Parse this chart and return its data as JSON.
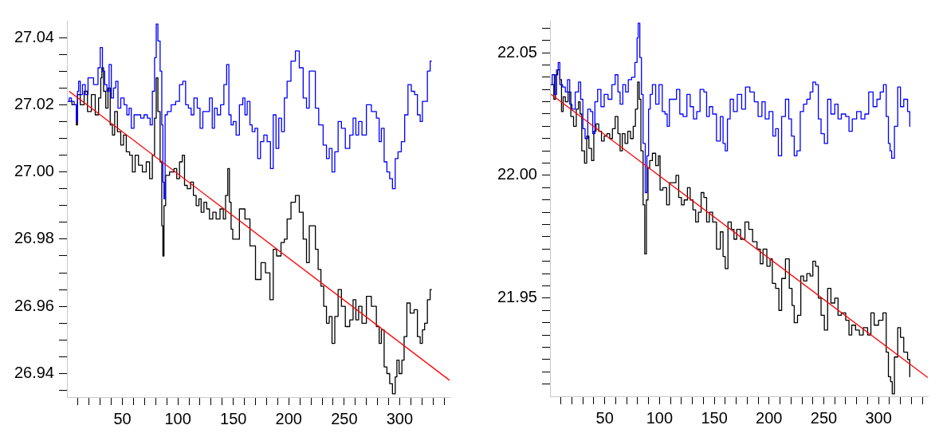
{
  "chart_data": [
    {
      "type": "step",
      "marker": "none",
      "xlim": [
        0,
        345
      ],
      "xticks": [
        {
          "value": 10,
          "label": null
        },
        {
          "value": 20,
          "label": null
        },
        {
          "value": 30,
          "label": null
        },
        {
          "value": 40,
          "label": null
        },
        50,
        {
          "value": 60,
          "label": null
        },
        {
          "value": 70,
          "label": null
        },
        {
          "value": 80,
          "label": null
        },
        {
          "value": 90,
          "label": null
        },
        100,
        {
          "value": 110,
          "label": null
        },
        {
          "value": 120,
          "label": null
        },
        {
          "value": 130,
          "label": null
        },
        {
          "value": 140,
          "label": null
        },
        150,
        {
          "value": 160,
          "label": null
        },
        {
          "value": 170,
          "label": null
        },
        {
          "value": 180,
          "label": null
        },
        {
          "value": 190,
          "label": null
        },
        200,
        {
          "value": 210,
          "label": null
        },
        {
          "value": 220,
          "label": null
        },
        {
          "value": 230,
          "label": null
        },
        {
          "value": 240,
          "label": null
        },
        250,
        {
          "value": 260,
          "label": null
        },
        {
          "value": 270,
          "label": null
        },
        {
          "value": 280,
          "label": null
        },
        {
          "value": 290,
          "label": null
        },
        300,
        {
          "value": 310,
          "label": null
        },
        {
          "value": 320,
          "label": null
        },
        {
          "value": 330,
          "label": null
        },
        {
          "value": 340,
          "label": null
        }
      ],
      "ylim": [
        26.933,
        27.045
      ],
      "yticks": [
        {
          "value": 26.935,
          "label": null
        },
        26.94,
        {
          "value": 26.945,
          "label": null
        },
        {
          "value": 26.95,
          "label": null
        },
        {
          "value": 26.955,
          "label": null
        },
        26.96,
        {
          "value": 26.965,
          "label": null
        },
        {
          "value": 26.97,
          "label": null
        },
        {
          "value": 26.975,
          "label": null
        },
        26.98,
        {
          "value": 26.985,
          "label": null
        },
        {
          "value": 26.99,
          "label": null
        },
        {
          "value": 26.995,
          "label": null
        },
        {
          "value": 27,
          "label": "27.00"
        },
        {
          "value": 27.005,
          "label": null
        },
        {
          "value": 27.01,
          "label": null
        },
        {
          "value": 27.015,
          "label": null
        },
        27.02,
        {
          "value": 27.025,
          "label": null
        },
        {
          "value": 27.03,
          "label": null
        },
        {
          "value": 27.035,
          "label": null
        },
        27.04
      ],
      "series": [
        {
          "color": "#000000",
          "x": [
            1,
            8,
            9,
            10,
            14,
            17,
            20,
            24,
            27,
            30,
            31,
            32,
            34,
            36,
            38,
            40,
            42,
            44,
            47,
            50,
            52,
            55,
            58,
            60,
            63,
            66,
            70,
            73,
            76,
            78,
            80,
            81,
            83,
            85,
            86,
            87,
            88,
            90,
            95,
            98,
            100,
            103,
            105,
            107,
            110,
            113,
            115,
            118,
            120,
            122,
            125,
            127,
            130,
            133,
            136,
            140,
            142,
            144,
            146,
            147,
            149,
            150,
            153,
            158,
            163,
            167,
            173,
            177,
            181,
            185,
            187,
            191,
            195,
            197,
            200,
            204,
            208,
            211,
            215,
            217,
            220,
            223,
            225,
            228,
            230,
            233,
            235,
            238,
            240,
            243,
            246,
            249,
            253,
            257,
            259,
            262,
            264,
            268,
            272,
            277,
            281,
            282,
            285,
            287,
            290,
            292,
            295,
            297,
            298,
            301,
            303,
            305,
            308,
            311,
            315,
            317,
            320,
            321,
            324,
            326,
            329
          ],
          "values": [
            27.021,
            27.02,
            27.014,
            27.023,
            27.02,
            27.024,
            27.018,
            27.023,
            27.017,
            27.022,
            27.028,
            27.031,
            27.024,
            27.019,
            27.025,
            27.014,
            27.011,
            27.018,
            27.012,
            27.008,
            27.011,
            27.006,
            27.005,
            27.0,
            27.005,
            27.002,
            27.0,
            27.003,
            26.998,
            27.005,
            27.016,
            27.028,
            27.018,
            27.003,
            26.984,
            26.975,
            26.99,
            26.999,
            27.0,
            27.001,
            26.998,
            27.003,
            27.005,
            26.996,
            26.995,
            26.997,
            26.993,
            26.99,
            26.992,
            26.988,
            26.991,
            26.989,
            26.986,
            26.988,
            26.986,
            26.989,
            26.986,
            26.993,
            27.001,
            26.991,
            26.983,
            26.98,
            26.98,
            26.989,
            26.986,
            26.978,
            26.968,
            26.973,
            26.97,
            26.962,
            26.977,
            26.975,
            26.979,
            26.98,
            26.986,
            26.991,
            26.993,
            26.988,
            26.98,
            26.973,
            26.984,
            26.984,
            26.977,
            26.971,
            26.966,
            26.96,
            26.955,
            26.957,
            26.949,
            26.957,
            26.965,
            26.96,
            26.954,
            26.956,
            26.962,
            26.956,
            26.96,
            26.955,
            26.963,
            26.96,
            26.954,
            26.949,
            26.953,
            26.942,
            26.94,
            26.937,
            26.934,
            26.939,
            26.944,
            26.94,
            26.944,
            26.951,
            26.961,
            26.958,
            26.959,
            26.951,
            26.949,
            26.953,
            26.955,
            26.962,
            26.965
          ]
        },
        {
          "color": "#0000ff",
          "x": [
            1,
            3,
            5,
            8,
            9,
            10,
            11,
            13,
            15,
            18,
            20,
            23,
            25,
            27,
            29,
            31,
            33,
            35,
            37,
            39,
            41,
            43,
            45,
            47,
            50,
            53,
            55,
            57,
            59,
            62,
            65,
            68,
            71,
            74,
            76,
            78,
            80,
            81,
            83,
            85,
            86,
            87,
            88,
            89,
            92,
            96,
            100,
            103,
            106,
            108,
            111,
            113,
            116,
            119,
            121,
            124,
            127,
            130,
            132,
            134,
            137,
            140,
            143,
            145,
            147,
            149,
            151,
            154,
            157,
            160,
            161,
            164,
            166,
            168,
            171,
            173,
            176,
            179,
            182,
            185,
            187,
            190,
            192,
            195,
            197,
            200,
            204,
            208,
            211,
            215,
            217,
            220,
            223,
            225,
            229,
            233,
            235,
            238,
            240,
            243,
            246,
            249,
            253,
            257,
            259,
            262,
            264,
            268,
            272,
            277,
            281,
            282,
            285,
            287,
            290,
            292,
            295,
            297,
            300,
            303,
            306,
            309,
            312,
            315,
            317,
            320,
            321,
            324,
            326,
            329
          ],
          "values": [
            27.021,
            27.022,
            27.021,
            27.02,
            27.015,
            27.024,
            27.027,
            27.023,
            27.026,
            27.023,
            27.028,
            27.028,
            27.026,
            27.026,
            27.031,
            27.037,
            27.03,
            27.026,
            27.024,
            27.032,
            27.022,
            27.025,
            27.027,
            27.019,
            27.022,
            27.02,
            27.017,
            27.019,
            27.013,
            27.017,
            27.017,
            27.016,
            27.017,
            27.016,
            27.014,
            27.024,
            27.034,
            27.044,
            27.039,
            27.03,
            27.014,
            26.997,
            26.992,
            27.017,
            27.018,
            27.02,
            27.021,
            27.026,
            27.027,
            27.02,
            27.019,
            27.017,
            27.022,
            27.019,
            27.013,
            27.018,
            27.018,
            27.022,
            27.013,
            27.019,
            27.017,
            27.02,
            27.026,
            27.032,
            27.017,
            27.014,
            27.015,
            27.011,
            27.02,
            27.022,
            27.017,
            27.021,
            27.014,
            27.012,
            27.013,
            27.004,
            27.009,
            27.011,
            27.009,
            27.001,
            27.017,
            27.007,
            27.016,
            27.012,
            27.022,
            27.027,
            27.033,
            27.036,
            27.031,
            27.022,
            27.019,
            27.03,
            27.03,
            27.019,
            27.014,
            27.008,
            27.004,
            27.007,
            27.0,
            27.006,
            27.015,
            27.013,
            27.007,
            27.011,
            27.016,
            27.011,
            27.015,
            27.011,
            27.02,
            27.018,
            27.016,
            27.009,
            27.013,
            27.003,
            27.0,
            26.998,
            26.995,
            27.004,
            27.006,
            27.009,
            27.017,
            27.026,
            27.024,
            27.023,
            27.017,
            27.015,
            27.021,
            27.021,
            27.03,
            27.033
          ]
        },
        {
          "type": "line",
          "color": "#ff0000",
          "x": [
            2,
            345
          ],
          "values": [
            27.024,
            26.938
          ]
        }
      ]
    },
    {
      "type": "step",
      "marker": "none",
      "xlim": [
        0,
        345
      ],
      "xticks": [
        {
          "value": 10,
          "label": null
        },
        {
          "value": 20,
          "label": null
        },
        {
          "value": 30,
          "label": null
        },
        {
          "value": 40,
          "label": null
        },
        50,
        {
          "value": 60,
          "label": null
        },
        {
          "value": 70,
          "label": null
        },
        {
          "value": 80,
          "label": null
        },
        {
          "value": 90,
          "label": null
        },
        100,
        {
          "value": 110,
          "label": null
        },
        {
          "value": 120,
          "label": null
        },
        {
          "value": 130,
          "label": null
        },
        {
          "value": 140,
          "label": null
        },
        150,
        {
          "value": 160,
          "label": null
        },
        {
          "value": 170,
          "label": null
        },
        {
          "value": 180,
          "label": null
        },
        {
          "value": 190,
          "label": null
        },
        200,
        {
          "value": 210,
          "label": null
        },
        {
          "value": 220,
          "label": null
        },
        {
          "value": 230,
          "label": null
        },
        {
          "value": 240,
          "label": null
        },
        250,
        {
          "value": 260,
          "label": null
        },
        {
          "value": 270,
          "label": null
        },
        {
          "value": 280,
          "label": null
        },
        {
          "value": 290,
          "label": null
        },
        300,
        {
          "value": 310,
          "label": null
        },
        {
          "value": 320,
          "label": null
        },
        {
          "value": 330,
          "label": null
        },
        {
          "value": 340,
          "label": null
        }
      ],
      "ylim": [
        21.91,
        22.063
      ],
      "yticks": [
        {
          "value": 21.915,
          "label": null
        },
        {
          "value": 21.92,
          "label": null
        },
        {
          "value": 21.925,
          "label": null
        },
        {
          "value": 21.93,
          "label": null
        },
        {
          "value": 21.935,
          "label": null
        },
        {
          "value": 21.94,
          "label": null
        },
        {
          "value": 21.945,
          "label": null
        },
        21.95,
        {
          "value": 21.955,
          "label": null
        },
        {
          "value": 21.96,
          "label": null
        },
        {
          "value": 21.965,
          "label": null
        },
        {
          "value": 21.97,
          "label": null
        },
        {
          "value": 21.975,
          "label": null
        },
        {
          "value": 21.98,
          "label": null
        },
        {
          "value": 21.985,
          "label": null
        },
        {
          "value": 21.99,
          "label": null
        },
        {
          "value": 21.995,
          "label": null
        },
        {
          "value": 22,
          "label": "22.00"
        },
        {
          "value": 22.005,
          "label": null
        },
        {
          "value": 22.01,
          "label": null
        },
        {
          "value": 22.015,
          "label": null
        },
        {
          "value": 22.02,
          "label": null
        },
        {
          "value": 22.025,
          "label": null
        },
        {
          "value": 22.03,
          "label": null
        },
        {
          "value": 22.035,
          "label": null
        },
        {
          "value": 22.04,
          "label": null
        },
        {
          "value": 22.045,
          "label": null
        },
        22.05,
        {
          "value": 22.055,
          "label": null
        },
        {
          "value": 22.06,
          "label": null
        }
      ],
      "series": [
        {
          "color": "#000000",
          "x": [
            1,
            3,
            4,
            6,
            8,
            10,
            11,
            13,
            15,
            18,
            20,
            23,
            25,
            27,
            28,
            30,
            33,
            34,
            37,
            39,
            41,
            43,
            46,
            48,
            51,
            53,
            56,
            58,
            61,
            63,
            65,
            67,
            70,
            72,
            75,
            77,
            79,
            81,
            82,
            84,
            86,
            87,
            89,
            90,
            92,
            95,
            98,
            100,
            101,
            105,
            108,
            110,
            114,
            116,
            119,
            121,
            124,
            127,
            129,
            132,
            134,
            137,
            139,
            142,
            144,
            147,
            150,
            154,
            157,
            159,
            161,
            164,
            167,
            169,
            172,
            176,
            180,
            183,
            187,
            191,
            193,
            196,
            200,
            202,
            204,
            208,
            210,
            213,
            217,
            220,
            222,
            224,
            228,
            230,
            233,
            236,
            239,
            241,
            244,
            246,
            249,
            252,
            255,
            258,
            262,
            264,
            268,
            272,
            274,
            277,
            281,
            284,
            288,
            292,
            294,
            298,
            302,
            306,
            308,
            310,
            312,
            313,
            316,
            319,
            321,
            325,
            328,
            329
          ],
          "values": [
            22.037,
            22.037,
            22.031,
            22.041,
            22.043,
            22.039,
            22.026,
            22.032,
            22.03,
            22.034,
            22.024,
            22.02,
            22.027,
            22.03,
            22.025,
            22.01,
            22.005,
            22.016,
            22.011,
            22.006,
            22.018,
            22.021,
            22.018,
            22.014,
            22.016,
            22.017,
            22.015,
            22.019,
            22.024,
            22.017,
            22.01,
            22.017,
            22.013,
            22.018,
            22.015,
            22.02,
            22.027,
            22.038,
            22.031,
            22.01,
            21.988,
            21.968,
            21.99,
            22.003,
            22.006,
            22.009,
            22.004,
            22.008,
            21.994,
            21.995,
            21.988,
            21.997,
            21.997,
            22.0,
            21.991,
            21.988,
            21.99,
            21.995,
            21.99,
            21.986,
            21.981,
            21.985,
            21.993,
            21.991,
            21.981,
            21.985,
            21.981,
            21.97,
            21.977,
            21.967,
            21.962,
            21.981,
            21.978,
            21.974,
            21.978,
            21.974,
            21.981,
            21.978,
            21.973,
            21.97,
            21.964,
            21.97,
            21.963,
            21.966,
            21.956,
            21.954,
            21.945,
            21.958,
            21.966,
            21.954,
            21.947,
            21.94,
            21.943,
            21.959,
            21.957,
            21.96,
            21.959,
            21.965,
            21.963,
            21.95,
            21.943,
            21.937,
            21.954,
            21.948,
            21.95,
            21.943,
            21.944,
            21.941,
            21.935,
            21.939,
            21.937,
            21.935,
            21.938,
            21.935,
            21.944,
            21.939,
            21.941,
            21.944,
            21.928,
            21.918,
            21.916,
            21.911,
            21.926,
            21.938,
            21.934,
            21.928,
            21.925,
            21.918
          ]
        },
        {
          "color": "#0000ff",
          "x": [
            1,
            3,
            5,
            7,
            8,
            10,
            13,
            15,
            17,
            19,
            21,
            25,
            27,
            29,
            31,
            33,
            36,
            38,
            40,
            42,
            45,
            48,
            51,
            55,
            58,
            61,
            63,
            65,
            68,
            70,
            73,
            76,
            79,
            80,
            81,
            83,
            84,
            86,
            88,
            89,
            91,
            92,
            95,
            98,
            101,
            104,
            106,
            108,
            110,
            114,
            117,
            120,
            123,
            127,
            129,
            133,
            135,
            139,
            142,
            144,
            147,
            150,
            154,
            157,
            159,
            161,
            163,
            166,
            169,
            173,
            177,
            180,
            185,
            188,
            192,
            195,
            198,
            202,
            205,
            207,
            210,
            213,
            217,
            219,
            222,
            224,
            227,
            230,
            233,
            236,
            239,
            241,
            244,
            246,
            249,
            252,
            255,
            258,
            262,
            264,
            268,
            272,
            274,
            278,
            282,
            286,
            289,
            293,
            297,
            300,
            303,
            306,
            308,
            310,
            311,
            313,
            316,
            319,
            321,
            325,
            328,
            329
          ],
          "values": [
            22.037,
            22.041,
            22.033,
            22.043,
            22.046,
            22.037,
            22.036,
            22.034,
            22.039,
            22.029,
            22.027,
            22.034,
            22.038,
            22.031,
            22.019,
            22.015,
            22.027,
            22.026,
            22.017,
            22.03,
            22.035,
            22.028,
            22.033,
            22.031,
            22.037,
            22.041,
            22.034,
            22.029,
            22.037,
            22.034,
            22.039,
            22.04,
            22.046,
            22.056,
            22.062,
            22.048,
            22.033,
            22.013,
            21.993,
            22.008,
            22.027,
            22.033,
            22.037,
            22.029,
            22.037,
            22.026,
            22.025,
            22.02,
            22.031,
            22.031,
            22.035,
            22.025,
            22.024,
            22.033,
            22.028,
            22.023,
            22.026,
            22.035,
            22.034,
            22.024,
            22.028,
            22.025,
            22.014,
            22.024,
            22.013,
            22.01,
            22.023,
            22.031,
            22.026,
            22.033,
            22.027,
            22.036,
            22.034,
            22.03,
            22.024,
            22.03,
            22.023,
            22.026,
            22.016,
            22.019,
            22.008,
            22.024,
            22.031,
            22.023,
            22.016,
            22.008,
            22.01,
            22.026,
            22.029,
            22.031,
            22.034,
            22.038,
            22.037,
            22.023,
            22.017,
            22.013,
            22.031,
            22.025,
            22.029,
            22.023,
            22.025,
            22.024,
            22.018,
            22.023,
            22.026,
            22.023,
            22.025,
            22.034,
            22.028,
            22.031,
            22.034,
            22.037,
            22.024,
            22.013,
            22.01,
            22.007,
            22.02,
            22.036,
            22.028,
            22.031,
            22.026,
            22.02
          ]
        },
        {
          "type": "line",
          "color": "#ff0000",
          "x": [
            1,
            345
          ],
          "values": [
            22.033,
            21.9176
          ]
        }
      ]
    }
  ]
}
